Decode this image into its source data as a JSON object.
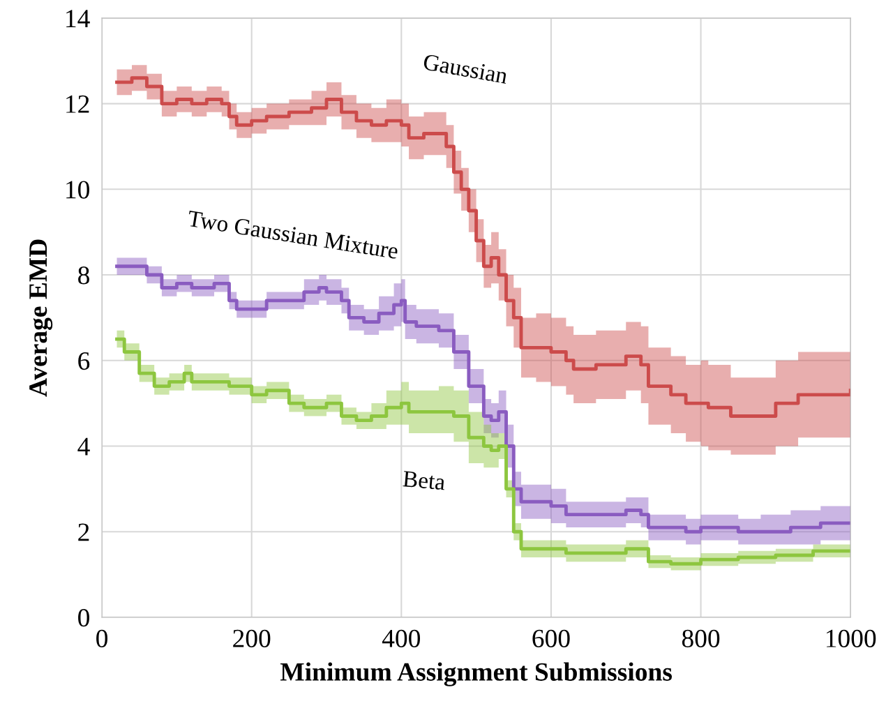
{
  "chart_data": {
    "type": "step",
    "xlabel": "Minimum Assignment Submissions",
    "ylabel": "Average EMD",
    "xlim": [
      0,
      1000
    ],
    "xticks": [
      0,
      200,
      400,
      600,
      800,
      1000
    ],
    "ylim": [
      0,
      14
    ],
    "yticks": [
      0,
      2,
      4,
      6,
      8,
      10,
      12,
      14
    ],
    "grid": true,
    "series": [
      {
        "name": "Gaussian",
        "color": "#cc4b4b",
        "x": [
          20,
          40,
          60,
          80,
          100,
          120,
          140,
          160,
          170,
          180,
          200,
          220,
          250,
          280,
          300,
          320,
          340,
          360,
          380,
          400,
          410,
          430,
          450,
          460,
          470,
          480,
          490,
          500,
          510,
          520,
          530,
          540,
          550,
          560,
          580,
          600,
          620,
          630,
          660,
          700,
          720,
          730,
          760,
          780,
          800,
          810,
          840,
          880,
          900,
          930,
          960,
          1000
        ],
        "values": [
          12.5,
          12.6,
          12.4,
          12.0,
          12.1,
          12.0,
          12.1,
          12.0,
          11.7,
          11.5,
          11.6,
          11.7,
          11.8,
          11.9,
          12.1,
          11.8,
          11.6,
          11.5,
          11.6,
          11.5,
          11.2,
          11.3,
          11.3,
          11.0,
          10.4,
          10.0,
          9.5,
          8.8,
          8.2,
          8.4,
          8.0,
          7.4,
          7.0,
          6.3,
          6.3,
          6.2,
          6.0,
          5.8,
          5.9,
          6.1,
          5.9,
          5.4,
          5.2,
          5.0,
          5.0,
          4.9,
          4.7,
          4.7,
          5.0,
          5.2,
          5.2,
          5.3
        ],
        "lower": [
          12.2,
          12.3,
          12.1,
          11.7,
          11.8,
          11.7,
          11.8,
          11.7,
          11.4,
          11.2,
          11.3,
          11.4,
          11.5,
          11.5,
          11.7,
          11.4,
          11.2,
          11.1,
          11.1,
          11.0,
          10.7,
          10.8,
          10.8,
          10.5,
          9.9,
          9.5,
          9.0,
          8.3,
          7.7,
          7.8,
          7.4,
          6.8,
          6.3,
          5.6,
          5.5,
          5.4,
          5.2,
          5.0,
          5.1,
          5.3,
          5.0,
          4.5,
          4.3,
          4.1,
          4.0,
          3.9,
          3.8,
          3.8,
          4.0,
          4.2,
          4.2,
          4.3
        ],
        "upper": [
          12.8,
          12.9,
          12.7,
          12.3,
          12.4,
          12.3,
          12.4,
          12.3,
          12.0,
          11.8,
          11.9,
          12.0,
          12.1,
          12.3,
          12.5,
          12.2,
          12.0,
          11.9,
          12.1,
          12.0,
          11.7,
          11.8,
          11.8,
          11.5,
          10.9,
          10.5,
          10.0,
          9.3,
          8.7,
          9.0,
          8.6,
          8.0,
          7.7,
          7.0,
          7.1,
          7.0,
          6.8,
          6.6,
          6.7,
          6.9,
          6.8,
          6.3,
          6.1,
          5.9,
          6.0,
          5.9,
          5.6,
          5.6,
          6.0,
          6.2,
          6.2,
          6.3
        ]
      },
      {
        "name": "Two Gaussian Mixture",
        "color": "#8a5cc0",
        "x": [
          20,
          40,
          60,
          80,
          100,
          120,
          140,
          150,
          170,
          180,
          200,
          220,
          250,
          270,
          290,
          300,
          320,
          330,
          350,
          370,
          390,
          400,
          405,
          420,
          450,
          470,
          490,
          510,
          520,
          530,
          540,
          550,
          560,
          580,
          600,
          620,
          650,
          700,
          720,
          730,
          780,
          800,
          850,
          880,
          920,
          960,
          1000
        ],
        "values": [
          8.2,
          8.2,
          8.0,
          7.7,
          7.8,
          7.7,
          7.7,
          7.8,
          7.4,
          7.2,
          7.2,
          7.4,
          7.4,
          7.6,
          7.7,
          7.6,
          7.4,
          7.0,
          6.9,
          7.1,
          7.3,
          7.4,
          6.9,
          6.8,
          6.7,
          6.2,
          5.4,
          4.7,
          4.6,
          4.8,
          4.0,
          3.0,
          2.7,
          2.7,
          2.6,
          2.4,
          2.4,
          2.5,
          2.4,
          2.1,
          2.0,
          2.1,
          2.0,
          2.0,
          2.1,
          2.2,
          2.2
        ],
        "lower": [
          8.0,
          8.0,
          7.8,
          7.5,
          7.6,
          7.5,
          7.5,
          7.6,
          7.2,
          7.0,
          7.0,
          7.2,
          7.2,
          7.3,
          7.4,
          7.3,
          7.1,
          6.7,
          6.6,
          6.7,
          6.8,
          6.9,
          6.5,
          6.4,
          6.3,
          5.8,
          5.0,
          4.3,
          4.2,
          4.3,
          3.5,
          2.6,
          2.3,
          2.3,
          2.2,
          2.1,
          2.1,
          2.2,
          2.1,
          1.8,
          1.7,
          1.8,
          1.7,
          1.7,
          1.7,
          1.8,
          1.8
        ],
        "upper": [
          8.4,
          8.4,
          8.2,
          7.9,
          8.0,
          7.9,
          7.9,
          8.0,
          7.6,
          7.4,
          7.4,
          7.6,
          7.6,
          7.9,
          8.0,
          7.9,
          7.7,
          7.3,
          7.2,
          7.5,
          7.8,
          7.9,
          7.3,
          7.2,
          7.1,
          6.6,
          5.8,
          5.1,
          5.0,
          5.3,
          4.5,
          3.4,
          3.1,
          3.1,
          3.0,
          2.7,
          2.7,
          2.8,
          2.8,
          2.4,
          2.3,
          2.4,
          2.3,
          2.4,
          2.5,
          2.6,
          2.6
        ]
      },
      {
        "name": "Beta",
        "color": "#8dc63f",
        "x": [
          20,
          30,
          50,
          70,
          90,
          110,
          120,
          150,
          170,
          200,
          220,
          250,
          270,
          300,
          320,
          340,
          360,
          380,
          400,
          410,
          450,
          470,
          490,
          510,
          520,
          530,
          540,
          550,
          560,
          600,
          620,
          650,
          700,
          720,
          730,
          760,
          800,
          850,
          900,
          950,
          1000
        ],
        "values": [
          6.5,
          6.2,
          5.7,
          5.4,
          5.5,
          5.7,
          5.5,
          5.5,
          5.4,
          5.2,
          5.3,
          5.0,
          4.9,
          5.0,
          4.7,
          4.6,
          4.7,
          4.9,
          5.0,
          4.8,
          4.8,
          4.7,
          4.2,
          4.0,
          3.9,
          4.0,
          3.0,
          2.0,
          1.6,
          1.6,
          1.5,
          1.5,
          1.6,
          1.6,
          1.3,
          1.25,
          1.35,
          1.4,
          1.45,
          1.55,
          1.55
        ],
        "lower": [
          6.3,
          6.0,
          5.5,
          5.2,
          5.3,
          5.5,
          5.3,
          5.3,
          5.2,
          5.0,
          5.1,
          4.8,
          4.7,
          4.8,
          4.5,
          4.4,
          4.4,
          4.5,
          4.5,
          4.3,
          4.3,
          4.1,
          3.6,
          3.5,
          3.5,
          3.7,
          2.8,
          1.8,
          1.4,
          1.4,
          1.3,
          1.3,
          1.4,
          1.4,
          1.15,
          1.1,
          1.2,
          1.25,
          1.3,
          1.4,
          1.4
        ],
        "upper": [
          6.7,
          6.4,
          5.9,
          5.6,
          5.7,
          5.9,
          5.7,
          5.7,
          5.6,
          5.4,
          5.5,
          5.2,
          5.1,
          5.2,
          4.9,
          4.8,
          5.0,
          5.3,
          5.5,
          5.3,
          5.4,
          5.3,
          4.8,
          4.5,
          4.3,
          4.3,
          3.2,
          2.2,
          1.8,
          1.8,
          1.7,
          1.7,
          1.8,
          1.8,
          1.45,
          1.4,
          1.5,
          1.55,
          1.6,
          1.7,
          1.7
        ]
      }
    ]
  }
}
